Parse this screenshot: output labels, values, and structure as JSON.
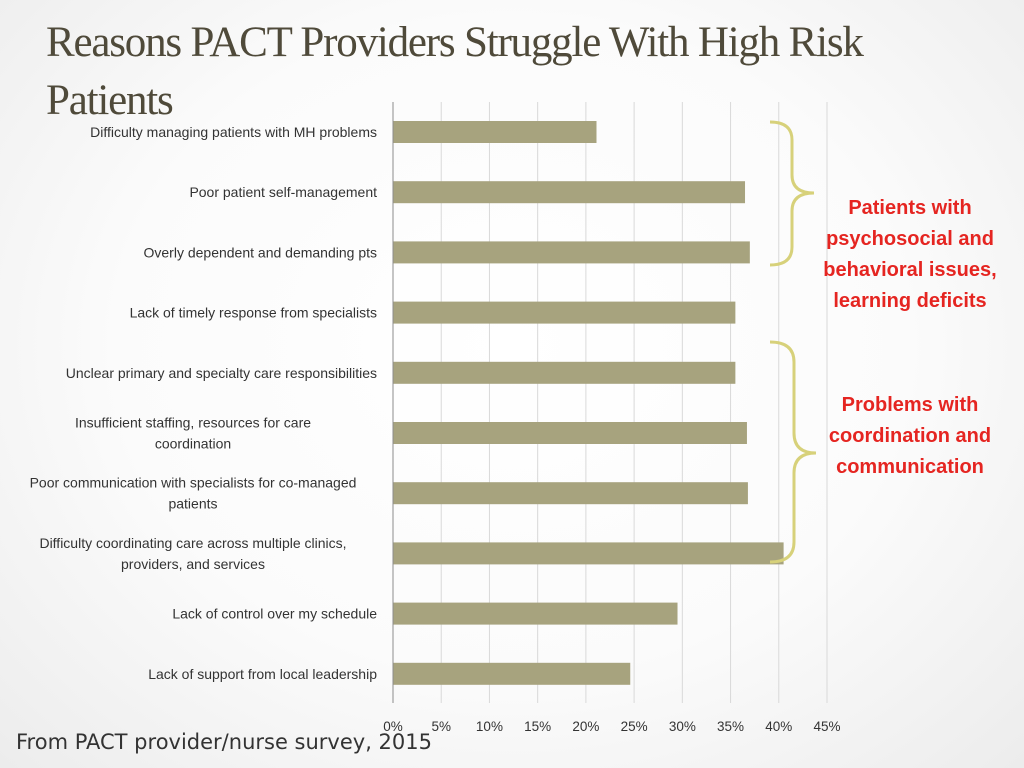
{
  "slide": {
    "title": "Reasons PACT Providers  Struggle With High Risk Patients",
    "source": "From PACT provider/nurse survey, 2015"
  },
  "annotations": {
    "group1": "Patients with psychosocial and behavioral issues, learning deficits",
    "group2": "Problems with coordination and communication"
  },
  "colors": {
    "bar": "#a7a37e",
    "brace": "#d7d17a",
    "annotation": "#e52521"
  },
  "chart_data": {
    "type": "bar",
    "orientation": "horizontal",
    "categories": [
      "Difficulty managing patients with MH problems",
      "Poor patient self-management",
      "Overly dependent and demanding pts",
      "Lack of timely response from specialists",
      "Unclear primary and specialty care responsibilities",
      "Insufficient staffing, resources for care coordination",
      "Poor communication with specialists for co-managed patients",
      "Difficulty coordinating care across multiple clinics, providers, and services",
      "Lack of control over my schedule",
      "Lack of support from local leadership"
    ],
    "values": [
      21.1,
      36.5,
      37.0,
      35.5,
      35.5,
      36.7,
      36.8,
      40.5,
      29.5,
      24.6
    ],
    "xlim": [
      0,
      45
    ],
    "xticks": [
      "0%",
      "5%",
      "10%",
      "15%",
      "20%",
      "25%",
      "30%",
      "35%",
      "40%",
      "45%"
    ],
    "xlabel": "",
    "ylabel": "",
    "grid": true,
    "legend": "none"
  }
}
